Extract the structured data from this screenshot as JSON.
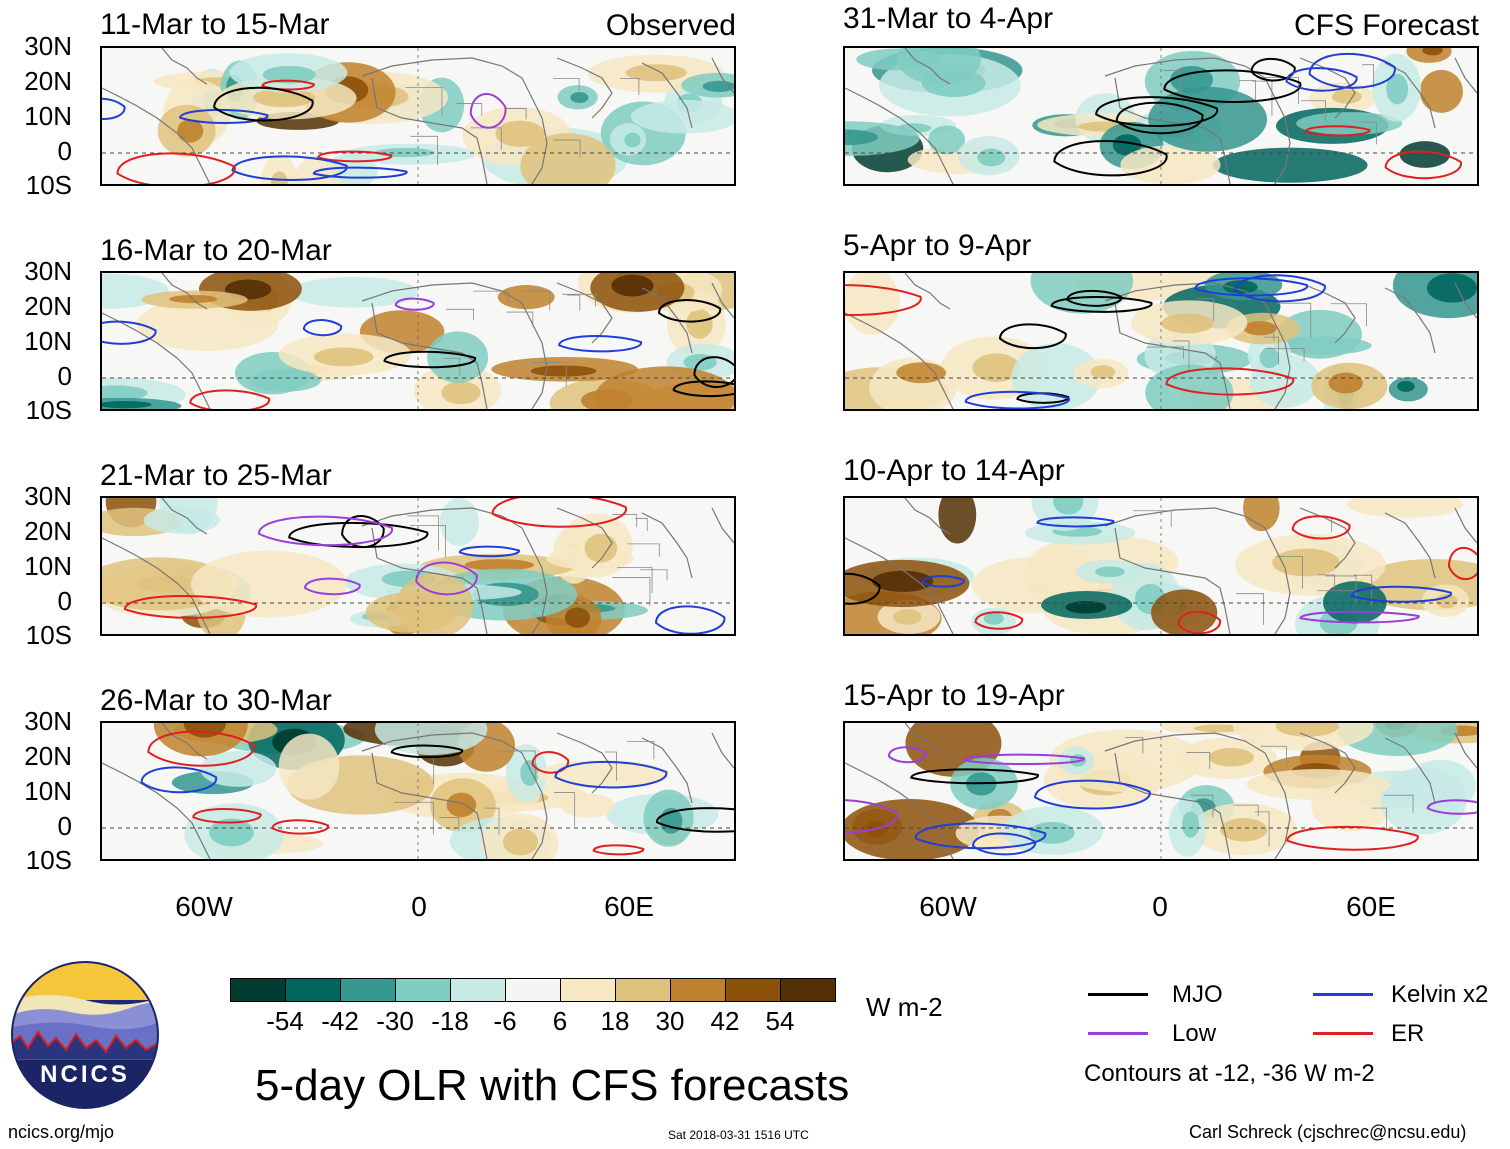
{
  "main_title": "5-day OLR with CFS forecasts",
  "left_column_label": "Observed",
  "right_column_label": "CFS Forecast",
  "panels_left": [
    {
      "title": "11-Mar to 15-Mar"
    },
    {
      "title": "16-Mar to 20-Mar"
    },
    {
      "title": "21-Mar to 25-Mar"
    },
    {
      "title": "26-Mar to 30-Mar"
    }
  ],
  "panels_right": [
    {
      "title": "31-Mar to 4-Apr"
    },
    {
      "title": "5-Apr to 9-Apr"
    },
    {
      "title": "10-Apr to 14-Apr"
    },
    {
      "title": "15-Apr to 19-Apr"
    }
  ],
  "lat_labels": [
    "30N",
    "20N",
    "10N",
    "0",
    "10S"
  ],
  "lon_labels": [
    "60W",
    "0",
    "60E"
  ],
  "colorbar": {
    "unit": "W m-2",
    "colors": [
      "#003c30",
      "#01665e",
      "#35978f",
      "#80cdc1",
      "#c7eae5",
      "#f5f5f5",
      "#f6e8c3",
      "#dfc27d",
      "#bf812d",
      "#8c510a",
      "#543005"
    ],
    "ticks": [
      "-54",
      "-42",
      "-30",
      "-18",
      "-6",
      "6",
      "18",
      "30",
      "42",
      "54"
    ]
  },
  "legend": {
    "items": [
      {
        "label": "MJO",
        "color": "#000000"
      },
      {
        "label": "Kelvin x2",
        "color": "#1f3fd6"
      },
      {
        "label": "Low",
        "color": "#9a3fd9"
      },
      {
        "label": "ER",
        "color": "#e02020"
      }
    ],
    "note": "Contours at -12, -36 W m-2"
  },
  "logo_text": "NCICS",
  "website": "ncics.org/mjo",
  "timestamp": "Sat 2018-03-31 1516 UTC",
  "author": "Carl Schreck (cjschrec@ncsu.edu)"
}
